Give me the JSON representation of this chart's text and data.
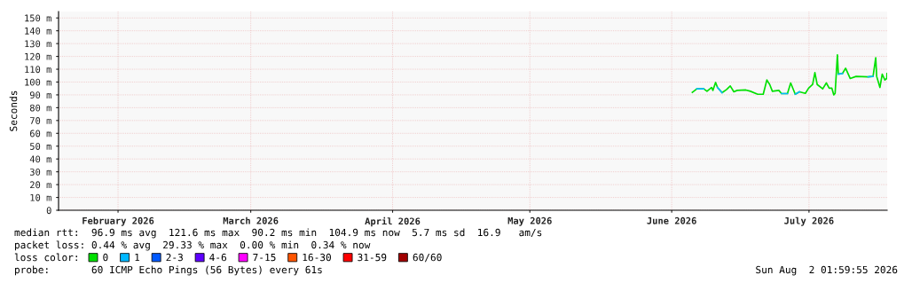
{
  "chart_data": {
    "type": "line",
    "ylabel": "Seconds",
    "xlim": [
      "2026-02-02",
      "2026-08-02T02:00"
    ],
    "xticks": [
      {
        "value": "2026-02-15",
        "label": "February 2026"
      },
      {
        "value": "2026-03-16",
        "label": "March 2026"
      },
      {
        "value": "2026-04-16",
        "label": "April 2026"
      },
      {
        "value": "2026-05-16",
        "label": "May 2026"
      },
      {
        "value": "2026-06-16",
        "label": "June 2026"
      },
      {
        "value": "2026-07-16",
        "label": "July 2026"
      }
    ],
    "ylim": [
      0,
      155
    ],
    "yticks": [
      0,
      {
        "value": 10,
        "label": "10 m"
      },
      {
        "value": 20,
        "label": "20 m"
      },
      {
        "value": 30,
        "label": "30 m"
      },
      {
        "value": 40,
        "label": "40 m"
      },
      {
        "value": 50,
        "label": "50 m"
      },
      {
        "value": 60,
        "label": "60 m"
      },
      {
        "value": 70,
        "label": "70 m"
      },
      {
        "value": 80,
        "label": "80 m"
      },
      {
        "value": 90,
        "label": "90 m"
      },
      {
        "value": 100,
        "label": "100 m"
      },
      {
        "value": 110,
        "label": "110 m"
      },
      {
        "value": 120,
        "label": "120 m"
      },
      {
        "value": 130,
        "label": "130 m"
      },
      {
        "value": 140,
        "label": "140 m"
      },
      {
        "value": 150,
        "label": "150 m"
      }
    ],
    "grid": true,
    "marker": "none",
    "line_style": "solid",
    "legend": "bottom",
    "legend_title": "loss color:",
    "x": [
      "2026-06-20T12:00",
      "2026-06-21T12:00",
      "2026-06-23T00:00",
      "2026-06-23T17:00",
      "2026-06-24T17:00",
      "2026-06-25T00:00",
      "2026-06-25T14:00",
      "2026-06-26T00:00",
      "2026-06-27T00:00",
      "2026-06-28T00:00",
      "2026-06-28T19:00",
      "2026-06-29T14:00",
      "2026-06-30T07:00",
      "2026-07-02T05:00",
      "2026-07-03T05:00",
      "2026-07-04T19:00",
      "2026-07-06T00:00",
      "2026-07-06T19:00",
      "2026-07-07T10:00",
      "2026-07-08T00:00",
      "2026-07-09T10:00",
      "2026-07-10T00:00",
      "2026-07-11T07:00",
      "2026-07-12T00:00",
      "2026-07-13T00:00",
      "2026-07-13T22:00",
      "2026-07-15T05:00",
      "2026-07-15T22:00",
      "2026-07-16T19:00",
      "2026-07-17T07:00",
      "2026-07-17T19:00",
      "2026-07-19T00:00",
      "2026-07-19T19:00",
      "2026-07-20T10:00",
      "2026-07-21T00:00",
      "2026-07-21T10:00",
      "2026-07-21T17:00",
      "2026-07-22T05:00",
      "2026-07-22T10:00",
      "2026-07-23T07:00",
      "2026-07-24T00:00",
      "2026-07-25T00:00",
      "2026-07-26T07:00",
      "2026-07-28T22:00",
      "2026-07-30T00:00",
      "2026-07-30T14:00",
      "2026-07-30T19:00",
      "2026-07-31T12:00",
      "2026-08-01T00:00",
      "2026-08-01T14:00",
      "2026-08-02T00:00",
      "2026-08-02T01:00"
    ],
    "series": [
      {
        "name": "0",
        "color": "#00e000",
        "values": [
          91.9,
          94.7,
          94.7,
          92.8,
          95.8,
          93.5,
          99.7,
          95.8,
          91.7,
          94.2,
          97,
          92.4,
          93.5,
          93.8,
          92.8,
          90.5,
          90.5,
          101.6,
          98.1,
          92.8,
          93.5,
          91,
          91,
          99.3,
          90.5,
          92.4,
          91.2,
          95.2,
          98.1,
          107.3,
          98.1,
          94.7,
          99.3,
          95.2,
          95.2,
          90,
          91.2,
          121.2,
          106.2,
          106.6,
          110.8,
          102.8,
          104.4,
          104,
          104.4,
          119,
          104.4,
          95.8,
          106.2,
          101.6,
          102.8,
          106.6
        ]
      },
      {
        "name": "1",
        "color": "#00b8ff",
        "values": [
          null,
          94.7,
          94.7,
          null,
          null,
          null,
          null,
          95.8,
          91.7,
          null,
          null,
          null,
          null,
          null,
          null,
          null,
          null,
          null,
          null,
          null,
          null,
          91,
          91,
          null,
          90.5,
          92.4,
          null,
          null,
          null,
          null,
          null,
          null,
          null,
          null,
          null,
          null,
          null,
          null,
          106.2,
          106.6,
          null,
          null,
          null,
          104,
          104.4,
          null,
          null,
          null,
          null,
          null,
          null,
          null
        ]
      },
      {
        "name": "2-3",
        "color": "#0059ff",
        "values": [
          null,
          null,
          null,
          null,
          null,
          null,
          null,
          null,
          null,
          null,
          null,
          null,
          null,
          null,
          null,
          null,
          null,
          null,
          null,
          null,
          null,
          null,
          null,
          null,
          null,
          null,
          null,
          null,
          null,
          null,
          null,
          null,
          null,
          null,
          null,
          null,
          null,
          null,
          null,
          null,
          null,
          null,
          null,
          null,
          null,
          null,
          null,
          null,
          null,
          null,
          null,
          null
        ]
      },
      {
        "name": "4-6",
        "color": "#5e00ff",
        "values": [
          null,
          null,
          null,
          null,
          null,
          null,
          null,
          null,
          null,
          null,
          null,
          null,
          null,
          null,
          null,
          null,
          null,
          null,
          null,
          null,
          null,
          null,
          null,
          null,
          null,
          null,
          null,
          null,
          null,
          null,
          null,
          null,
          null,
          null,
          null,
          null,
          null,
          null,
          null,
          null,
          null,
          null,
          null,
          null,
          null,
          null,
          null,
          null,
          null,
          null,
          null,
          null
        ]
      },
      {
        "name": "7-15",
        "color": "#ff00ff",
        "values": [
          null,
          null,
          null,
          null,
          null,
          null,
          null,
          null,
          null,
          null,
          null,
          null,
          null,
          null,
          null,
          null,
          null,
          null,
          null,
          null,
          null,
          null,
          null,
          null,
          null,
          null,
          null,
          null,
          null,
          null,
          null,
          null,
          null,
          null,
          null,
          null,
          null,
          null,
          null,
          null,
          null,
          null,
          null,
          null,
          null,
          null,
          null,
          null,
          null,
          null,
          null,
          null
        ]
      },
      {
        "name": "16-30",
        "color": "#ff5500",
        "values": [
          null,
          null,
          null,
          null,
          null,
          null,
          null,
          null,
          null,
          null,
          null,
          null,
          null,
          null,
          null,
          null,
          null,
          null,
          null,
          null,
          null,
          null,
          null,
          null,
          null,
          null,
          null,
          null,
          null,
          null,
          null,
          null,
          null,
          null,
          null,
          null,
          null,
          null,
          null,
          null,
          null,
          null,
          null,
          null,
          null,
          null,
          null,
          null,
          null,
          null,
          null,
          null
        ]
      },
      {
        "name": "31-59",
        "color": "#ff0000",
        "values": [
          null,
          null,
          null,
          null,
          null,
          null,
          null,
          null,
          null,
          null,
          null,
          null,
          null,
          null,
          null,
          null,
          null,
          null,
          null,
          null,
          null,
          null,
          null,
          null,
          null,
          null,
          null,
          null,
          null,
          null,
          null,
          null,
          null,
          null,
          null,
          null,
          null,
          null,
          null,
          null,
          null,
          null,
          null,
          null,
          null,
          null,
          null,
          null,
          null,
          null,
          null,
          null
        ]
      },
      {
        "name": "60/60",
        "color": "#a10000",
        "values": [
          null,
          null,
          null,
          null,
          null,
          null,
          null,
          null,
          null,
          null,
          null,
          null,
          null,
          null,
          null,
          null,
          null,
          null,
          null,
          null,
          null,
          null,
          null,
          null,
          null,
          null,
          null,
          null,
          null,
          null,
          null,
          null,
          null,
          null,
          null,
          null,
          null,
          null,
          null,
          null,
          null,
          null,
          null,
          null,
          null,
          null,
          null,
          null,
          null,
          null,
          null,
          null
        ]
      }
    ],
    "annotations": [
      "median rtt:  96.9 ms avg  121.6 ms max  90.2 ms min  104.9 ms now  5.7 ms sd  16.9   am/s",
      "packet loss: 0.44 % avg  29.33 % max  0.00 % min  0.34 % now",
      "probe:       60 ICMP Echo Pings (56 Bytes) every 61s",
      "Sun Aug  2 01:59:55 2026"
    ]
  }
}
